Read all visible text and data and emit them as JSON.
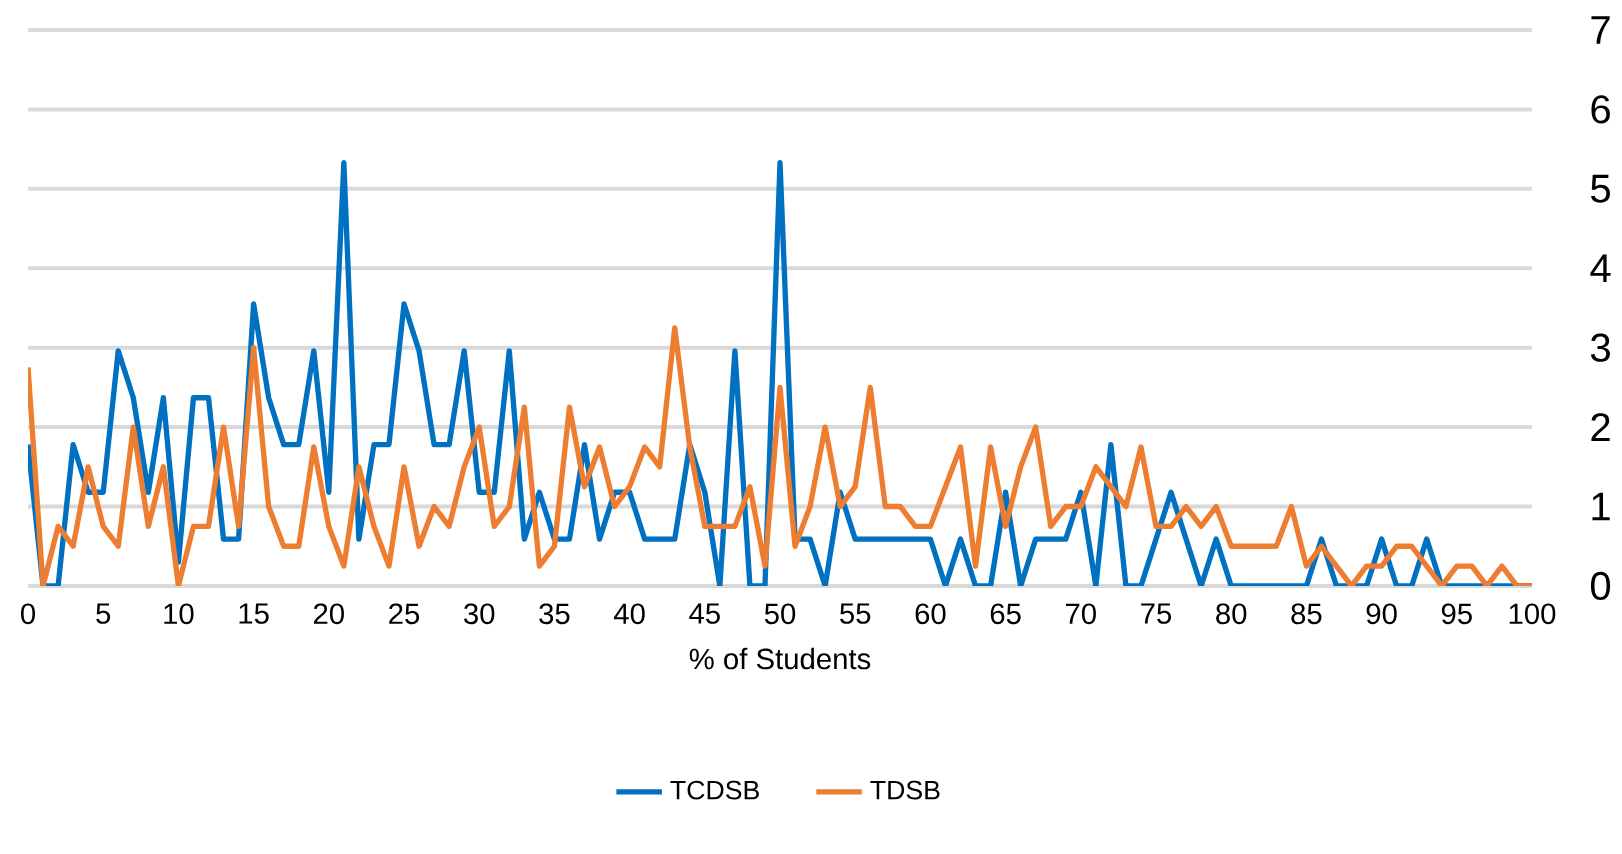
{
  "chart_data": {
    "type": "line",
    "xlabel": "% of Students",
    "x": [
      0,
      1,
      2,
      3,
      4,
      5,
      6,
      7,
      8,
      9,
      10,
      11,
      12,
      13,
      14,
      15,
      16,
      17,
      18,
      19,
      20,
      21,
      22,
      23,
      24,
      25,
      26,
      27,
      28,
      29,
      30,
      31,
      32,
      33,
      34,
      35,
      36,
      37,
      38,
      39,
      40,
      41,
      42,
      43,
      44,
      45,
      46,
      47,
      48,
      49,
      50,
      51,
      52,
      53,
      54,
      55,
      56,
      57,
      58,
      59,
      60,
      61,
      62,
      63,
      64,
      65,
      66,
      67,
      68,
      69,
      70,
      71,
      72,
      73,
      74,
      75,
      76,
      77,
      78,
      79,
      80,
      81,
      82,
      83,
      84,
      85,
      86,
      87,
      88,
      89,
      90,
      91,
      92,
      93,
      94,
      95,
      96,
      97,
      98,
      99,
      100
    ],
    "series": [
      {
        "name": "TCDSB",
        "color": "#0070c0",
        "values": [
          1.78,
          0,
          0,
          1.78,
          1.18,
          1.18,
          2.96,
          2.37,
          1.18,
          2.37,
          0.3,
          2.37,
          2.37,
          0.59,
          0.59,
          3.55,
          2.37,
          1.78,
          1.78,
          2.96,
          1.18,
          5.33,
          0.59,
          1.78,
          1.78,
          3.55,
          2.96,
          1.78,
          1.78,
          2.96,
          1.18,
          1.18,
          2.96,
          0.59,
          1.18,
          0.59,
          0.59,
          1.78,
          0.59,
          1.18,
          1.18,
          0.59,
          0.59,
          0.59,
          1.78,
          1.18,
          0,
          2.96,
          0,
          0,
          5.33,
          0.59,
          0.59,
          0,
          1.18,
          0.59,
          0.59,
          0.59,
          0.59,
          0.59,
          0.59,
          0,
          0.59,
          0,
          0,
          1.18,
          0,
          0.59,
          0.59,
          0.59,
          1.18,
          0,
          1.78,
          0,
          0,
          0.59,
          1.18,
          0.59,
          0,
          0.59,
          0,
          0,
          0,
          0,
          0,
          0,
          0.59,
          0,
          0,
          0,
          0.59,
          0,
          0,
          0.59,
          0,
          0,
          0,
          0,
          0,
          0,
          0
        ]
      },
      {
        "name": "TDSB",
        "color": "#ed7d31",
        "values": [
          2.75,
          0,
          0.75,
          0.5,
          1.5,
          0.75,
          0.5,
          2,
          0.75,
          1.5,
          0,
          0.75,
          0.75,
          2,
          0.75,
          3,
          1,
          0.5,
          0.5,
          1.75,
          0.75,
          0.25,
          1.5,
          0.75,
          0.25,
          1.5,
          0.5,
          1,
          0.75,
          1.5,
          2,
          0.75,
          1,
          2.25,
          0.25,
          0.5,
          2.25,
          1.25,
          1.75,
          1,
          1.25,
          1.75,
          1.5,
          3.25,
          1.75,
          0.75,
          0.75,
          0.75,
          1.25,
          0.25,
          2.5,
          0.5,
          1,
          2,
          1,
          1.25,
          2.5,
          1,
          1,
          0.75,
          0.75,
          1.25,
          1.75,
          0.25,
          1.75,
          0.75,
          1.5,
          2,
          0.75,
          1,
          1,
          1.5,
          1.25,
          1,
          1.75,
          0.75,
          0.75,
          1,
          0.75,
          1,
          0.5,
          0.5,
          0.5,
          0.5,
          1,
          0.25,
          0.5,
          0.25,
          0,
          0.25,
          0.25,
          0.5,
          0.5,
          0.25,
          0,
          0.25,
          0.25,
          0,
          0.25,
          0,
          0
        ]
      }
    ],
    "xlim": [
      0,
      100
    ],
    "xticks": [
      0,
      5,
      10,
      15,
      20,
      25,
      30,
      35,
      40,
      45,
      50,
      55,
      60,
      65,
      70,
      75,
      80,
      85,
      90,
      95,
      100
    ],
    "ylim": [
      0,
      7
    ],
    "yticks": [
      0,
      1,
      2,
      3,
      4,
      5,
      6,
      7
    ],
    "grid": "y",
    "legend": "bottom",
    "marker": "none",
    "line_style": "solid"
  }
}
